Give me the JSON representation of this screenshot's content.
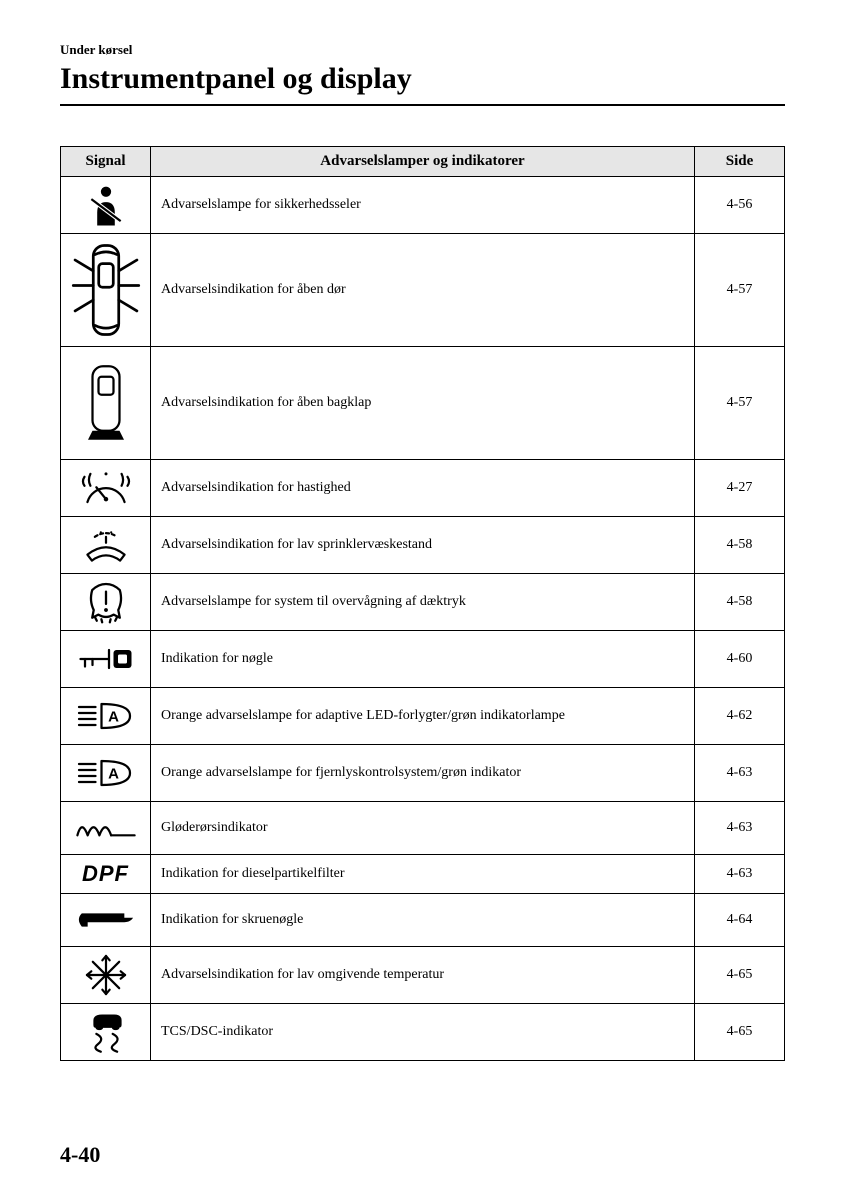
{
  "header": {
    "section": "Under kørsel",
    "title": "Instrumentpanel og display"
  },
  "columns": {
    "signal": "Signal",
    "description": "Advarselslamper og indikatorer",
    "page": "Side"
  },
  "rows": [
    {
      "id": "seatbelt",
      "desc": "Advarselslampe for sikkerhedsseler",
      "page": "4-56",
      "height": "h-mid"
    },
    {
      "id": "door-open",
      "desc": "Advarselsindikation for åben dør",
      "page": "4-57",
      "height": "h-large"
    },
    {
      "id": "liftgate-open",
      "desc": "Advarselsindikation for åben bagklap",
      "page": "4-57",
      "height": "h-large"
    },
    {
      "id": "speed",
      "desc": "Advarselsindikation for hastighed",
      "page": "4-27",
      "height": "h-mid"
    },
    {
      "id": "washer-low",
      "desc": "Advarselsindikation for lav sprinklervæskestand",
      "page": "4-58",
      "height": "h-mid"
    },
    {
      "id": "tpms",
      "desc": "Advarselslampe for system til overvågning af dæktryk",
      "page": "4-58",
      "height": "h-mid"
    },
    {
      "id": "key",
      "desc": "Indikation for nøgle",
      "page": "4-60",
      "height": "h-mid"
    },
    {
      "id": "adaptive-led",
      "desc": "Orange advarselslampe for adaptive LED-forlygter/grøn indikatorlampe",
      "page": "4-62",
      "height": "h-mid"
    },
    {
      "id": "high-beam-ctl",
      "desc": "Orange advarselslampe for fjernlyskontrolsystem/grøn indikator",
      "page": "4-63",
      "height": "h-mid"
    },
    {
      "id": "glow-plug",
      "desc": "Gløderørsindikator",
      "page": "4-63",
      "height": "h-small"
    },
    {
      "id": "dpf",
      "desc": "Indikation for dieselpartikelfilter",
      "page": "4-63",
      "height": "h-mid"
    },
    {
      "id": "wrench",
      "desc": "Indikation for skruenøgle",
      "page": "4-64",
      "height": "h-small"
    },
    {
      "id": "low-temp",
      "desc": "Advarselsindikation for lav omgivende temperatur",
      "page": "4-65",
      "height": "h-mid"
    },
    {
      "id": "tcs-dsc",
      "desc": "TCS/DSC-indikator",
      "page": "4-65",
      "height": "h-mid"
    }
  ],
  "footer": {
    "pageNumber": "4-40"
  },
  "style": {
    "iconColor": "#000000",
    "headerBg": "#e6e6e6",
    "border": "#000000",
    "bodyFont": "Times New Roman"
  }
}
